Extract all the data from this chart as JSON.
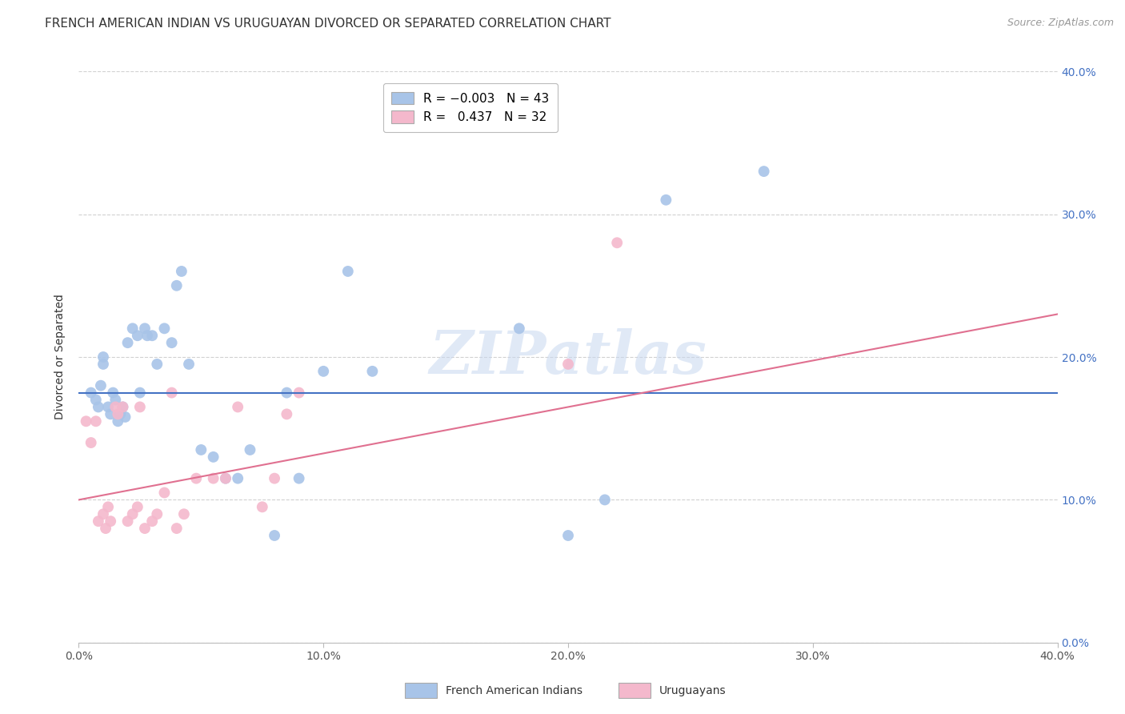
{
  "title": "FRENCH AMERICAN INDIAN VS URUGUAYAN DIVORCED OR SEPARATED CORRELATION CHART",
  "source": "Source: ZipAtlas.com",
  "ylabel": "Divorced or Separated",
  "xlim": [
    0.0,
    0.4
  ],
  "ylim": [
    0.0,
    0.4
  ],
  "yticks": [
    0.0,
    0.1,
    0.2,
    0.3,
    0.4
  ],
  "xticks": [
    0.0,
    0.1,
    0.2,
    0.3,
    0.4
  ],
  "watermark": "ZIPatlas",
  "legend_blue_label": "French American Indians",
  "legend_pink_label": "Uruguayans",
  "blue_color": "#a8c4e8",
  "pink_color": "#f4b8cc",
  "blue_line_color": "#4472c4",
  "pink_line_color": "#e07090",
  "blue_scatter_x": [
    0.005,
    0.007,
    0.008,
    0.009,
    0.01,
    0.01,
    0.012,
    0.013,
    0.014,
    0.015,
    0.016,
    0.017,
    0.018,
    0.019,
    0.02,
    0.022,
    0.024,
    0.025,
    0.027,
    0.028,
    0.03,
    0.032,
    0.035,
    0.038,
    0.04,
    0.042,
    0.045,
    0.05,
    0.055,
    0.06,
    0.065,
    0.07,
    0.08,
    0.085,
    0.09,
    0.1,
    0.11,
    0.12,
    0.18,
    0.2,
    0.215,
    0.24,
    0.28
  ],
  "blue_scatter_y": [
    0.175,
    0.17,
    0.165,
    0.18,
    0.195,
    0.2,
    0.165,
    0.16,
    0.175,
    0.17,
    0.155,
    0.16,
    0.165,
    0.158,
    0.21,
    0.22,
    0.215,
    0.175,
    0.22,
    0.215,
    0.215,
    0.195,
    0.22,
    0.21,
    0.25,
    0.26,
    0.195,
    0.135,
    0.13,
    0.115,
    0.115,
    0.135,
    0.075,
    0.175,
    0.115,
    0.19,
    0.26,
    0.19,
    0.22,
    0.075,
    0.1,
    0.31,
    0.33
  ],
  "pink_scatter_x": [
    0.003,
    0.005,
    0.007,
    0.008,
    0.01,
    0.011,
    0.012,
    0.013,
    0.015,
    0.016,
    0.018,
    0.02,
    0.022,
    0.024,
    0.025,
    0.027,
    0.03,
    0.032,
    0.035,
    0.038,
    0.04,
    0.043,
    0.048,
    0.055,
    0.06,
    0.065,
    0.075,
    0.08,
    0.085,
    0.09,
    0.2,
    0.22
  ],
  "pink_scatter_y": [
    0.155,
    0.14,
    0.155,
    0.085,
    0.09,
    0.08,
    0.095,
    0.085,
    0.165,
    0.16,
    0.165,
    0.085,
    0.09,
    0.095,
    0.165,
    0.08,
    0.085,
    0.09,
    0.105,
    0.175,
    0.08,
    0.09,
    0.115,
    0.115,
    0.115,
    0.165,
    0.095,
    0.115,
    0.16,
    0.175,
    0.195,
    0.28
  ],
  "blue_line_x": [
    0.0,
    0.4
  ],
  "blue_line_y": [
    0.175,
    0.175
  ],
  "pink_line_x": [
    0.0,
    0.4
  ],
  "pink_line_y": [
    0.1,
    0.23
  ],
  "background_color": "#ffffff",
  "grid_color": "#cccccc",
  "right_axis_color": "#4472c4",
  "title_fontsize": 11,
  "axis_label_fontsize": 10,
  "tick_fontsize": 10,
  "legend_fontsize": 11,
  "marker_size": 100
}
